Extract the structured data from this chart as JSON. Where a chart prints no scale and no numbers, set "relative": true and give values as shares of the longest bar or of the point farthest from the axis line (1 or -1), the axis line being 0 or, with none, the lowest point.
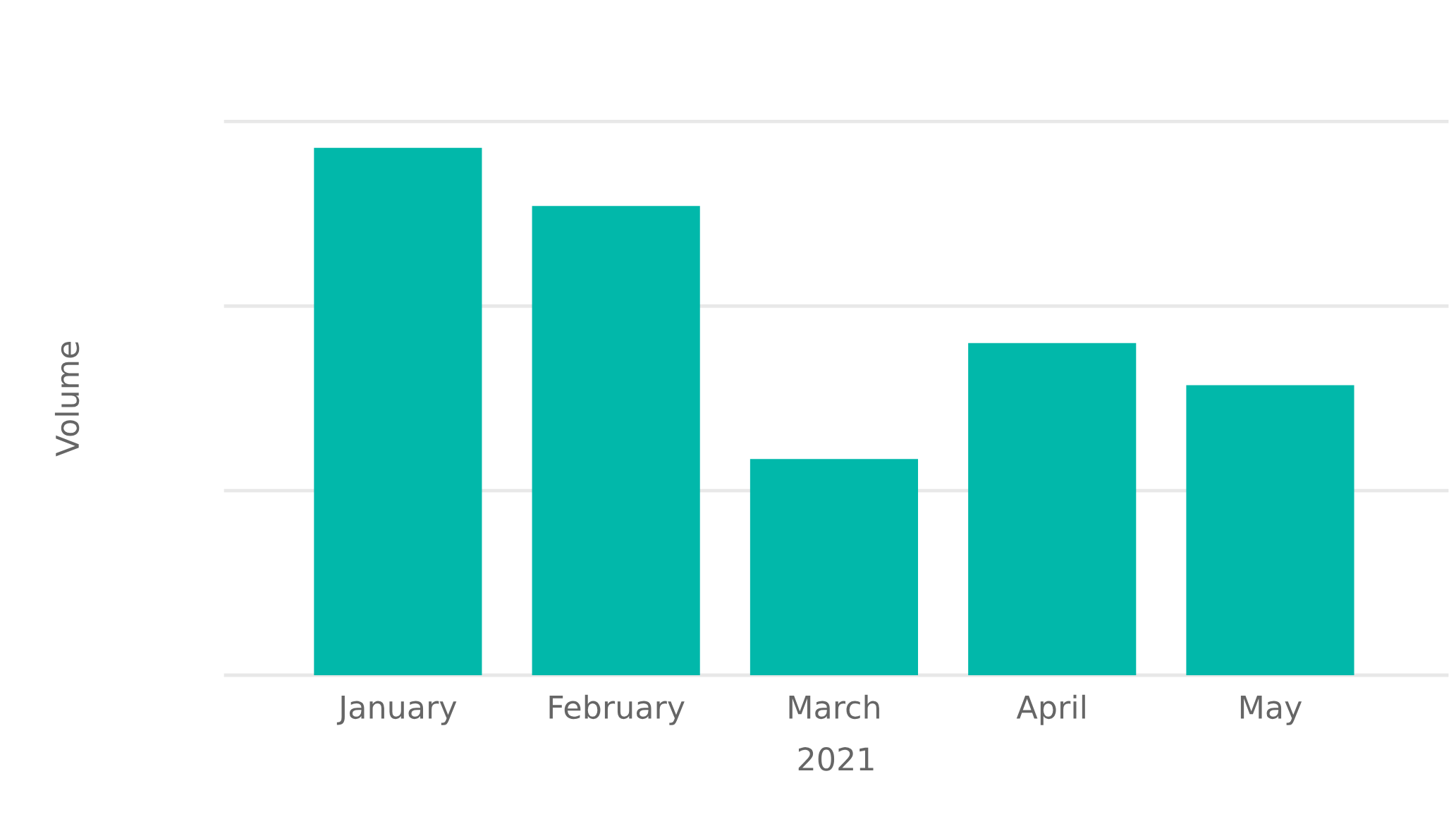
{
  "chart_data": {
    "type": "bar",
    "xlabel": "2021",
    "ylabel": "Volume",
    "categories": [
      "January",
      "February",
      "March",
      "April",
      "May"
    ],
    "values": [
      1,
      0.89,
      0.41,
      0.63,
      0.55
    ],
    "color": "#01b8aa",
    "relative": true,
    "ref_lines": [
      {
        "axis": "y",
        "value": 0.35,
        "color": "#e8e8e8"
      },
      {
        "axis": "y",
        "value": 0.7,
        "color": "#e8e8e8"
      },
      {
        "axis": "y",
        "value": 1.05,
        "color": "#e8e8e8"
      }
    ],
    "tick_labels": "x"
  }
}
